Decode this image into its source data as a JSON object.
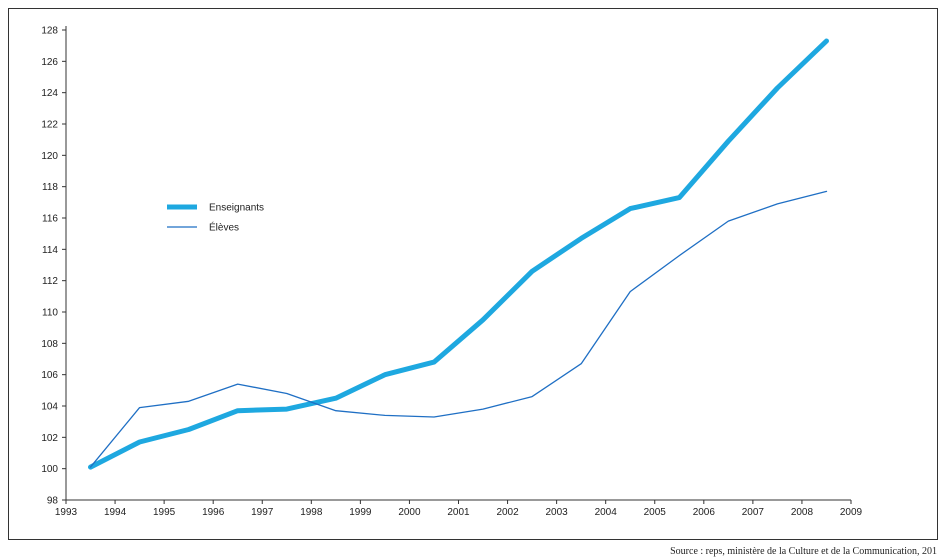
{
  "chart_data": {
    "type": "line",
    "title": "",
    "xlabel": "",
    "ylabel": "",
    "xlim": [
      1993,
      2009
    ],
    "ylim": [
      98,
      128
    ],
    "x_ticks": [
      "1993",
      "1994",
      "1995",
      "1996",
      "1997",
      "1998",
      "1999",
      "2000",
      "2001",
      "2002",
      "2003",
      "2004",
      "2005",
      "2006",
      "2007",
      "2008",
      "2009"
    ],
    "y_ticks": [
      "98",
      "100",
      "102",
      "104",
      "106",
      "108",
      "110",
      "112",
      "114",
      "116",
      "118",
      "120",
      "122",
      "124",
      "126",
      "128"
    ],
    "grid": false,
    "legend_position": "left",
    "series": [
      {
        "name": "Enseignants",
        "color": "#1ea8e0",
        "line": "thick",
        "x": [
          1993.5,
          1994.5,
          1995.5,
          1996.5,
          1997.5,
          1998.5,
          1999.5,
          2000.5,
          2001.5,
          2002.5,
          2003.5,
          2004.5,
          2005.5,
          2006.5,
          2007.5,
          2008.5
        ],
        "values": [
          100.1,
          101.7,
          102.5,
          103.7,
          103.8,
          104.5,
          106.0,
          106.8,
          109.5,
          112.6,
          114.7,
          116.6,
          117.3,
          120.9,
          124.3,
          127.3
        ]
      },
      {
        "name": "Élèves",
        "color": "#1f6fc4",
        "line": "thin",
        "x": [
          1993.5,
          1994.5,
          1995.5,
          1996.5,
          1997.5,
          1998.5,
          1999.5,
          2000.5,
          2001.5,
          2002.5,
          2003.5,
          2004.5,
          2005.5,
          2006.5,
          2007.5,
          2008.5
        ],
        "values": [
          100.1,
          103.9,
          104.3,
          105.4,
          104.8,
          103.7,
          103.4,
          103.3,
          103.8,
          104.6,
          106.7,
          111.3,
          113.6,
          115.8,
          116.9,
          117.7
        ]
      }
    ]
  },
  "source": "Source : reps, ministère de la Culture et de la Communication, 201"
}
